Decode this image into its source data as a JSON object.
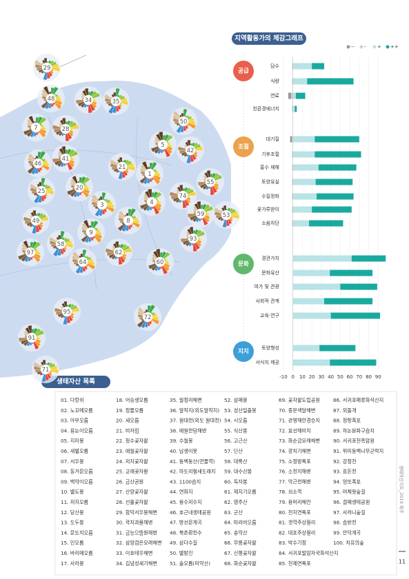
{
  "map": {
    "markers": [
      "29",
      "48",
      "34",
      "35",
      "7",
      "28",
      "50",
      "5",
      "42",
      "46",
      "41",
      "21",
      "1",
      "55",
      "25",
      "20",
      "74",
      "3",
      "4",
      "49",
      "8",
      "59",
      "53",
      "9",
      "93",
      "58",
      "97",
      "62",
      "64",
      "60",
      "95",
      "72",
      "91",
      "71"
    ]
  },
  "chart_data": {
    "type": "bar",
    "title": "지역활동가의 체감그래프",
    "groups": [
      {
        "name": "공급",
        "color": "#e8604c",
        "categories": [
          "담수",
          "식량",
          "연료",
          "친환경에너지"
        ]
      },
      {
        "name": "조절",
        "color": "#eba24c",
        "categories": [
          "대기질",
          "기후조절",
          "홍수 재해",
          "토양유실",
          "수질정화",
          "꽃가루받이",
          "소음차단"
        ]
      },
      {
        "name": "문화",
        "color": "#5fb86b",
        "categories": [
          "경관가치",
          "문화유산",
          "여가 및 관광",
          "사회적 관계",
          "교육·연구"
        ]
      },
      {
        "name": "지지",
        "color": "#3e9fd8",
        "categories": [
          "토양형성",
          "서식지 제공"
        ]
      }
    ],
    "series": [
      {
        "name": "--",
        "color": "#9a9a9a",
        "values": [
          0,
          0,
          -3,
          0,
          -2,
          0,
          0,
          0,
          0,
          0,
          0,
          0,
          0,
          0,
          0,
          0,
          0,
          0
        ]
      },
      {
        "name": "-",
        "color": "#cfcfcf",
        "values": [
          -1,
          -1,
          -2,
          -1,
          -1,
          -1,
          -1,
          -1,
          -1,
          -1,
          -1,
          0,
          0,
          0,
          0,
          0,
          0,
          0
        ]
      },
      {
        "name": "+",
        "color": "#b9e3e6",
        "values": [
          20,
          15,
          3,
          2,
          23,
          23,
          27,
          24,
          25,
          20,
          17,
          62,
          39,
          50,
          33,
          40,
          28,
          39
        ]
      },
      {
        "name": "++",
        "color": "#1aa99f",
        "values": [
          13,
          49,
          10,
          2,
          47,
          49,
          40,
          39,
          39,
          42,
          36,
          36,
          45,
          39,
          51,
          52,
          38,
          49
        ]
      }
    ],
    "xlim": [
      -10,
      100
    ],
    "xticks": [
      -10,
      0,
      10,
      20,
      30,
      40,
      50,
      60,
      70,
      80,
      90
    ],
    "grid": true
  },
  "list": {
    "title": "생태자산 목록",
    "items": [
      "01. 다랑쉬",
      "02. 노꼬메오름",
      "03. 아부오름",
      "04. 용눈이오름",
      "05. 지미봉",
      "06. 새별오름",
      "07. 서우봉",
      "08. 동거문오름",
      "09. 백약이오름",
      "10. 별도봉",
      "11. 저지오름",
      "12. 당산봉",
      "13. 도두봉",
      "14. 문도지오름",
      "15. 민오름",
      "16. 바리메오름",
      "17. 사라봉",
      "18. 어승생오름",
      "19. 정물오름",
      "20. 세오름",
      "21. 비자림",
      "22. 청수곶자왈",
      "23. 애월곶자왈",
      "24. 저지곶자왈",
      "25. 교래곶자왈",
      "26. 금산공원",
      "27. 산양곶자왈",
      "28. 선흘곶자왈",
      "29. 함덕서우봉해변",
      "30. 곽지과물해변",
      "31. 금능으뜸원해변",
      "32. 삼양검은모래해변",
      "33. 이호테우해변",
      "34. 김녕성세기해변",
      "35. 월정리해변",
      "36. 알작지(외도알작지)",
      "37. 월대천(외도 월대천)",
      "38. 애월한담해변",
      "39. 수월봉",
      "40. 남생이못",
      "41. 동백동산(먼물깍)",
      "42. 하도리철새도래지",
      "43. 1100습지",
      "44. 연화지",
      "45. 용수저수지",
      "46. 호근내생태공원",
      "47. 방선문계곡",
      "48. 북촌환천수",
      "49. 삼다수길",
      "50. 별방진",
      "51. 솔오름(미악산)",
      "52. 삼매봉",
      "53. 성산일출봉",
      "54. 시오름",
      "55. 식산봉",
      "56. 고근산",
      "57. 단산",
      "58. 대록산",
      "59. 대수산봉",
      "60. 독자봉",
      "61. 제지기오름",
      "62. 영주산",
      "63. 군산",
      "64. 따라비오름",
      "65. 송악산",
      "66. 무릉곶자왈",
      "67. 신평곶자왈",
      "68. 화순곶자왈",
      "69. 곶자왈도립공원",
      "70. 중문색달해변",
      "71. 관영해안경승지",
      "72. 표선해비치",
      "73. 화순금모래해변",
      "74. 광치기해변",
      "75. 소정방폭포",
      "76. 소천지해변",
      "77. 악근천해변",
      "78. 쇠소깍",
      "79. 용머리해안",
      "80. 천지연폭포",
      "81. 갯깍주상절리",
      "82. 대포주상절리",
      "83. 박수기정",
      "84. 서귀포발암자국화석산지",
      "85. 천제연폭포",
      "86. 서귀포패류화석산지",
      "87. 외돌개",
      "88. 정방폭포",
      "89. 하논분화구습지",
      "90. 서귀포천흑암원",
      "91. 위미동백나무군락지",
      "92. 강정천",
      "93. 효돈천",
      "94. 엉또폭포",
      "95. 머체왓숲길",
      "96. 걸매생태공원",
      "97. 사려니숲길",
      "98. 솜반천",
      "99. 안덕계곡",
      "100. 치유의숲"
    ]
  },
  "footer": {
    "side_text": "생태자산지도_2019 제주",
    "page": "11"
  }
}
